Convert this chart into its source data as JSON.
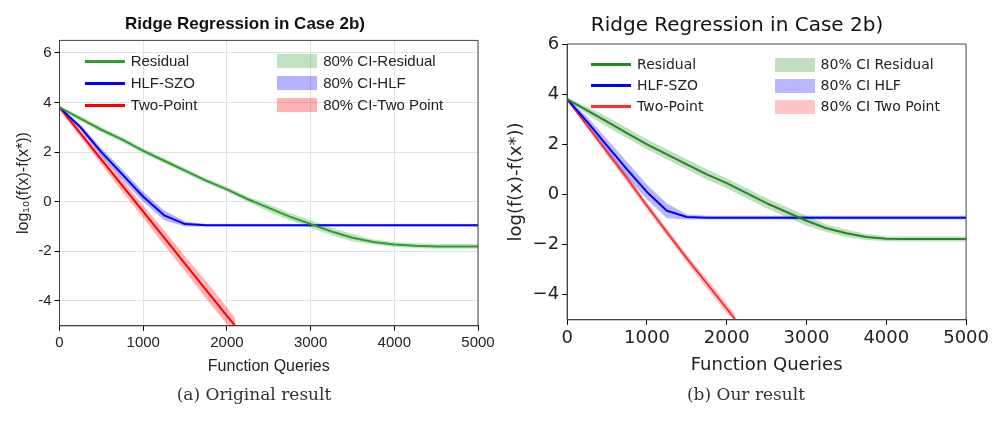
{
  "chart_data": [
    {
      "type": "line",
      "title": "Ridge Regression in Case 2b)",
      "xlabel": "Function Queries",
      "ylabel": "log₁₀(f(x)-f(x*))",
      "annotations": [
        "80% CI-Residual",
        "80% CI-HLF",
        "80% CI-Two Point",
        "(a) Original result"
      ],
      "grid": true,
      "legend": "top",
      "xlim": [
        0,
        5000
      ],
      "xticks": [
        0,
        1000,
        2000,
        3000,
        4000,
        5000
      ],
      "ylim": [
        -5,
        6.5
      ],
      "yticks": [
        -4,
        -2,
        0,
        2,
        4,
        6
      ],
      "x": [
        0,
        250,
        500,
        750,
        1000,
        1250,
        1500,
        1750,
        2000,
        2250,
        2500,
        2750,
        3000,
        3250,
        3500,
        3750,
        4000,
        4250,
        4500,
        4750,
        5000
      ],
      "series": [
        {
          "name": "Residual",
          "type": "line",
          "color": "#2e9e2e",
          "values": [
            3.8,
            3.35,
            2.9,
            2.5,
            2.05,
            1.65,
            1.25,
            0.85,
            0.5,
            0.1,
            -0.25,
            -0.6,
            -0.9,
            -1.2,
            -1.45,
            -1.62,
            -1.72,
            -1.77,
            -1.8,
            -1.8,
            -1.8
          ],
          "lower": [
            3.75,
            3.25,
            2.8,
            2.4,
            1.95,
            1.55,
            1.15,
            0.75,
            0.4,
            0,
            -0.4,
            -0.75,
            -1.05,
            -1.35,
            -1.6,
            -1.72,
            -1.82,
            -1.87,
            -1.9,
            -1.9,
            -1.9
          ],
          "upper": [
            3.85,
            3.45,
            3.0,
            2.6,
            2.15,
            1.75,
            1.35,
            0.95,
            0.6,
            0.2,
            -0.1,
            -0.45,
            -0.75,
            -1.05,
            -1.3,
            -1.52,
            -1.62,
            -1.67,
            -1.7,
            -1.7,
            -1.7
          ]
        },
        {
          "name": "HLF-SZO",
          "type": "line",
          "color": "#0000ff",
          "values": [
            3.8,
            3.0,
            2.0,
            1.1,
            0.2,
            -0.55,
            -0.9,
            -0.95,
            -0.95,
            -0.95,
            -0.95,
            -0.95,
            -0.95,
            -0.95,
            -0.95,
            -0.95,
            -0.95,
            -0.95,
            -0.95,
            -0.95,
            -0.95
          ],
          "lower": [
            3.75,
            2.9,
            1.85,
            0.9,
            0,
            -0.75,
            -1.0,
            -1.0,
            -1.0,
            -1.0,
            -1.0,
            -1.0,
            -1.0,
            -1.0,
            -1.0,
            -1.0,
            -1.0,
            -1.0,
            -1.0,
            -1.0,
            -1.0
          ],
          "upper": [
            3.85,
            3.1,
            2.15,
            1.3,
            0.4,
            -0.35,
            -0.8,
            -0.9,
            -0.9,
            -0.9,
            -0.9,
            -0.9,
            -0.9,
            -0.9,
            -0.9,
            -0.9,
            -0.9,
            -0.9,
            -0.9,
            -0.9,
            -0.9
          ]
        },
        {
          "name": "Two-Point",
          "type": "line",
          "color": "#ff0000",
          "x": [
            0,
            250,
            500,
            750,
            1000,
            1250,
            1500,
            1750,
            2000,
            2100
          ],
          "values": [
            3.8,
            2.75,
            1.7,
            0.65,
            -0.4,
            -1.45,
            -2.5,
            -3.55,
            -4.6,
            -5.0
          ],
          "lower": [
            3.7,
            2.6,
            1.5,
            0.4,
            -0.65,
            -1.75,
            -2.8,
            -3.9,
            -4.95,
            -5.0
          ],
          "upper": [
            3.9,
            2.9,
            1.9,
            0.9,
            -0.15,
            -1.15,
            -2.2,
            -3.2,
            -4.25,
            -4.7
          ]
        }
      ]
    },
    {
      "type": "line",
      "title": "Ridge Regression in Case 2b)",
      "xlabel": "Function Queries",
      "ylabel": "log(f(x)-f(x*))",
      "annotations": [
        "80% CI Residual",
        "80% CI HLF",
        "80% CI Two Point",
        "(b) Our result"
      ],
      "grid": false,
      "legend": "top",
      "xlim": [
        0,
        5000
      ],
      "xticks": [
        0,
        1000,
        2000,
        3000,
        4000,
        5000
      ],
      "ylim": [
        -5,
        6
      ],
      "yticks": [
        {
          "value": -4,
          "label": "−4"
        },
        {
          "value": -2,
          "label": "−2"
        },
        0,
        2,
        4,
        6
      ],
      "x": [
        0,
        250,
        500,
        750,
        1000,
        1250,
        1500,
        1750,
        2000,
        2250,
        2500,
        2750,
        3000,
        3250,
        3500,
        3750,
        4000,
        4250,
        4500,
        4750,
        5000
      ],
      "series": [
        {
          "name": "Residual",
          "type": "line",
          "color": "#1f8a1f",
          "values": [
            3.8,
            3.35,
            2.9,
            2.45,
            2.0,
            1.6,
            1.2,
            0.8,
            0.45,
            0.05,
            -0.35,
            -0.7,
            -1.05,
            -1.35,
            -1.55,
            -1.7,
            -1.77,
            -1.78,
            -1.78,
            -1.78,
            -1.78
          ],
          "lower": [
            3.75,
            3.2,
            2.7,
            2.25,
            1.8,
            1.4,
            1.0,
            0.6,
            0.25,
            -0.15,
            -0.55,
            -0.9,
            -1.25,
            -1.5,
            -1.7,
            -1.82,
            -1.87,
            -1.88,
            -1.88,
            -1.88,
            -1.88
          ],
          "upper": [
            3.85,
            3.5,
            3.1,
            2.65,
            2.2,
            1.8,
            1.4,
            1.0,
            0.65,
            0.25,
            -0.15,
            -0.5,
            -0.85,
            -1.2,
            -1.4,
            -1.58,
            -1.67,
            -1.68,
            -1.68,
            -1.68,
            -1.68
          ]
        },
        {
          "name": "HLF-SZO",
          "type": "line",
          "color": "#0000ff",
          "values": [
            3.8,
            2.9,
            1.95,
            1.0,
            0.1,
            -0.65,
            -0.9,
            -0.93,
            -0.93,
            -0.93,
            -0.93,
            -0.93,
            -0.93,
            -0.93,
            -0.93,
            -0.93,
            -0.93,
            -0.93,
            -0.93,
            -0.93,
            -0.93
          ],
          "lower": [
            3.75,
            2.7,
            1.7,
            0.7,
            -0.2,
            -0.95,
            -1.0,
            -1.0,
            -1.0,
            -1.0,
            -1.0,
            -1.0,
            -1.0,
            -1.0,
            -1.0,
            -1.0,
            -1.0,
            -1.0,
            -1.0,
            -1.0,
            -1.0
          ],
          "upper": [
            3.85,
            3.1,
            2.2,
            1.3,
            0.4,
            -0.35,
            -0.8,
            -0.85,
            -0.85,
            -0.85,
            -0.85,
            -0.85,
            -0.85,
            -0.85,
            -0.85,
            -0.85,
            -0.85,
            -0.85,
            -0.85,
            -0.85,
            -0.85
          ]
        },
        {
          "name": "Two-Point",
          "type": "line",
          "color": "#ff3030",
          "x": [
            0,
            250,
            500,
            750,
            1000,
            1250,
            1500,
            1750,
            2000,
            2110
          ],
          "values": [
            3.8,
            2.75,
            1.7,
            0.65,
            -0.45,
            -1.5,
            -2.55,
            -3.55,
            -4.55,
            -5.0
          ],
          "lower": [
            3.75,
            2.65,
            1.55,
            0.5,
            -0.6,
            -1.65,
            -2.7,
            -3.75,
            -4.75,
            -5.0
          ],
          "upper": [
            3.85,
            2.85,
            1.85,
            0.8,
            -0.3,
            -1.35,
            -2.4,
            -3.35,
            -4.35,
            -4.8
          ]
        }
      ]
    }
  ]
}
